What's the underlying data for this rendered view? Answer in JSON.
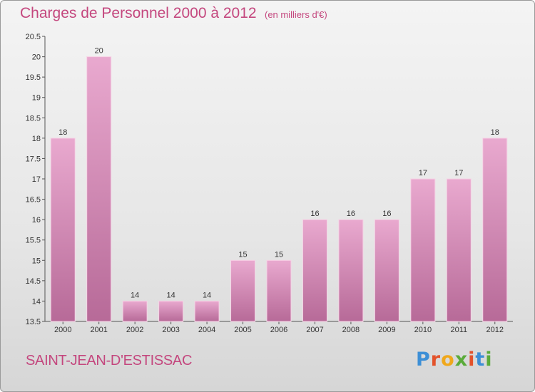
{
  "header": {
    "title": "Charges de Personnel 2000 à 2012",
    "subtitle": "(en milliers d'€)"
  },
  "footer": {
    "commune": "SAINT-JEAN-D'ESTISSAC",
    "logo": "Proxiti"
  },
  "colors": {
    "bar_top": "#e9a9cf",
    "bar_bottom": "#b76a98",
    "text_accent": "#c4477e"
  },
  "chart_data": {
    "type": "bar",
    "title": "Charges de Personnel 2000 à 2012",
    "subtitle": "(en milliers d'€)",
    "xlabel": "",
    "ylabel": "",
    "categories": [
      "2000",
      "2001",
      "2002",
      "2003",
      "2004",
      "2005",
      "2006",
      "2007",
      "2008",
      "2009",
      "2010",
      "2011",
      "2012"
    ],
    "values": [
      18,
      20,
      14,
      14,
      14,
      15,
      15,
      16,
      16,
      16,
      17,
      17,
      18
    ],
    "data_labels": [
      "18",
      "20",
      "14",
      "14",
      "14",
      "15",
      "15",
      "16",
      "16",
      "16",
      "17",
      "17",
      "18"
    ],
    "ylim": [
      13.5,
      20.5
    ],
    "yticks": [
      13.5,
      14,
      14.5,
      15,
      15.5,
      16,
      16.5,
      17,
      17.5,
      18,
      18.5,
      19,
      19.5,
      20,
      20.5
    ],
    "ytick_labels": [
      "13.5",
      "14",
      "14.5",
      "15",
      "15.5",
      "16",
      "16.5",
      "17",
      "17.5",
      "18",
      "18.5",
      "19",
      "19.5",
      "20",
      "20.5"
    ],
    "grid": false,
    "legend": "none"
  }
}
